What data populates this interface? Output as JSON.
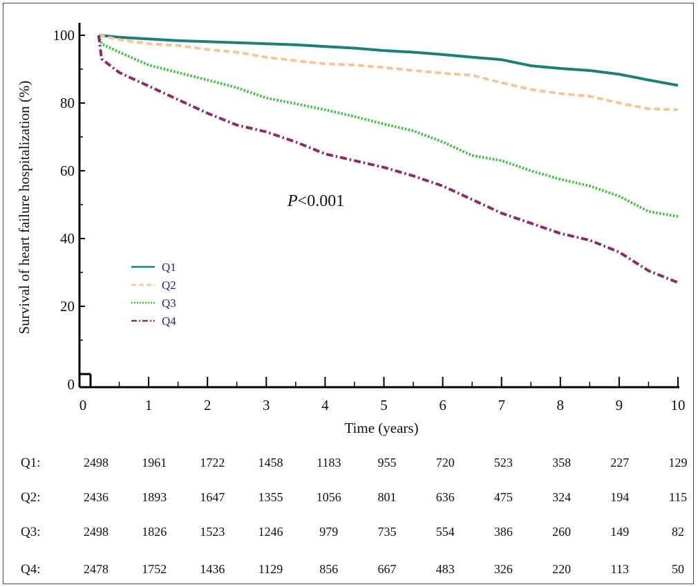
{
  "chart_data": {
    "type": "line",
    "xlabel": "Time (years)",
    "ylabel": "Survival of heart failure hospitalization (%)",
    "xlim": [
      0,
      10
    ],
    "ylim": [
      0,
      100
    ],
    "x_ticks": [
      "0",
      "1",
      "2",
      "3",
      "4",
      "5",
      "6",
      "7",
      "8",
      "9",
      "10"
    ],
    "y_ticks": [
      "0",
      "20",
      "40",
      "60",
      "80",
      "100"
    ],
    "annotation": {
      "p_italic": "P",
      "p_rest": "<0.001"
    },
    "legend_position": "center-left",
    "series": [
      {
        "name": "Q1",
        "color": "#1d7f79",
        "dash": "solid",
        "x": [
          0.15,
          0.5,
          1,
          1.5,
          2,
          2.5,
          3,
          3.5,
          4,
          4.5,
          5,
          5.5,
          6,
          6.5,
          7,
          7.5,
          8,
          8.5,
          9,
          9.5,
          10
        ],
        "y": [
          100,
          99.4,
          98.9,
          98.4,
          98.1,
          97.8,
          97.5,
          97.2,
          96.7,
          96.2,
          95.5,
          95,
          94.3,
          93.5,
          92.8,
          91,
          90.2,
          89.6,
          88.5,
          86.8,
          85.2
        ]
      },
      {
        "name": "Q2",
        "color": "#f4c699",
        "dash": "dashed",
        "x": [
          0.15,
          0.5,
          1,
          1.5,
          2,
          2.5,
          3,
          3.5,
          4,
          4.5,
          5,
          5.5,
          6,
          6.5,
          7,
          7.5,
          8,
          8.5,
          9,
          9.5,
          10
        ],
        "y": [
          100,
          98.7,
          97.5,
          97,
          95.8,
          95,
          93.5,
          92.5,
          91.6,
          91.2,
          90.5,
          89.6,
          88.8,
          88.2,
          86,
          84,
          82.8,
          82,
          80,
          78.3,
          78
        ]
      },
      {
        "name": "Q3",
        "color": "#3fc23f",
        "dash": "dotted",
        "x": [
          0.15,
          0.2,
          0.5,
          1,
          1.5,
          2,
          2.5,
          3,
          3.5,
          4,
          4.5,
          5,
          5.5,
          6,
          6.5,
          7,
          7.5,
          8,
          8.5,
          9,
          9.5,
          10
        ],
        "y": [
          100,
          97.5,
          95,
          91.2,
          89,
          86.8,
          84.5,
          81.5,
          79.8,
          78,
          76,
          73.8,
          71.8,
          68.5,
          64.5,
          63,
          60,
          57.5,
          55.5,
          52.5,
          48,
          46.5
        ]
      },
      {
        "name": "Q4",
        "color": "#8b2c63",
        "dash": "dashdot",
        "x": [
          0.15,
          0.2,
          0.5,
          1,
          1.5,
          2,
          2.5,
          3,
          3.5,
          4,
          4.5,
          5,
          5.5,
          6,
          6.5,
          7,
          7.5,
          8,
          8.5,
          9,
          9.5,
          10
        ],
        "y": [
          100,
          93,
          89,
          85,
          81,
          77,
          73.5,
          71.5,
          68.5,
          65,
          63,
          61,
          58.5,
          55.5,
          51.5,
          47.5,
          44.5,
          41.5,
          39.5,
          36,
          30.5,
          27
        ]
      }
    ],
    "risk_table": {
      "rows": [
        {
          "label": "Q1:",
          "values": [
            "2498",
            "1961",
            "1722",
            "1458",
            "1183",
            "955",
            "720",
            "523",
            "358",
            "227",
            "129"
          ]
        },
        {
          "label": "Q2:",
          "values": [
            "2436",
            "1893",
            "1647",
            "1355",
            "1056",
            "801",
            "636",
            "475",
            "324",
            "194",
            "115"
          ]
        },
        {
          "label": "Q3:",
          "values": [
            "2498",
            "1826",
            "1523",
            "1246",
            "979",
            "735",
            "554",
            "386",
            "260",
            "149",
            "82"
          ]
        },
        {
          "label": "Q4:",
          "values": [
            "2478",
            "1752",
            "1436",
            "1129",
            "856",
            "667",
            "483",
            "326",
            "220",
            "113",
            "50"
          ]
        }
      ]
    }
  }
}
